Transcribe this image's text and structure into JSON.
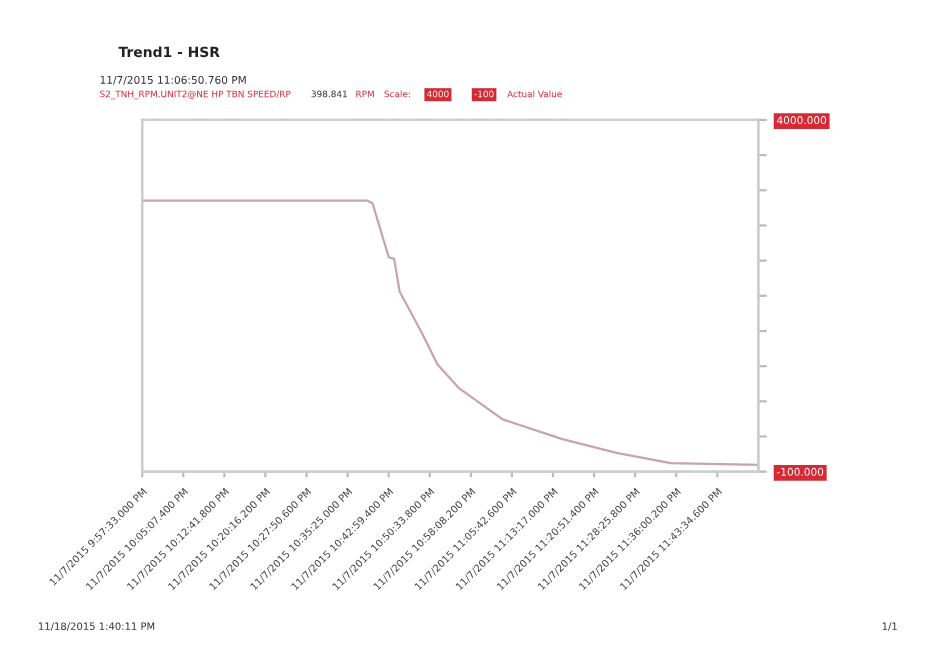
{
  "chart_data": {
    "type": "line",
    "title": "Trend1 - HSR",
    "subtitle": "11/7/2015 11:06:50.760 PM",
    "series": [
      {
        "name": "S2_TNH_RPM.UNIT2@NE HP TBN SPEED/RP",
        "color": "#c9a3ab",
        "axis": "y2",
        "x": [
          "2015-11-07T21:57:33",
          "2015-11-07T22:39",
          "2015-11-07T22:40",
          "2015-11-07T22:43",
          "2015-11-07T22:44",
          "2015-11-07T22:45",
          "2015-11-07T22:49",
          "2015-11-07T22:52",
          "2015-11-07T22:56",
          "2015-11-07T23:04",
          "2015-11-07T23:15",
          "2015-11-07T23:25",
          "2015-11-07T23:35",
          "2015-11-07T23:51"
        ],
        "values": [
          3060,
          3060,
          3030,
          2400,
          2380,
          2000,
          1530,
          1150,
          870,
          510,
          280,
          120,
          0,
          -20
        ]
      }
    ],
    "annotations": [
      "398.841",
      "RPM",
      "Scale:",
      "4000",
      "-100",
      "Actual Value",
      "11/18/2015 1:40:11 PM",
      "1/1"
    ],
    "xlim": [
      "2015-11-07T21:57:33",
      "2015-11-07T23:51:09"
    ],
    "xticks": [
      {
        "value": "2015-11-07T21:57:33",
        "label": "11/7/2015 9:57:33.000 PM"
      },
      {
        "value": "2015-11-07T22:05:07.400",
        "label": "11/7/2015 10:05:07.400 PM"
      },
      {
        "value": "2015-11-07T22:12:41.800",
        "label": "11/7/2015 10:12:41.800 PM"
      },
      {
        "value": "2015-11-07T22:20:16.200",
        "label": "11/7/2015 10:20:16.200 PM"
      },
      {
        "value": "2015-11-07T22:27:50.600",
        "label": "11/7/2015 10:27:50.600 PM"
      },
      {
        "value": "2015-11-07T22:35:25",
        "label": "11/7/2015 10:35:25.000 PM"
      },
      {
        "value": "2015-11-07T22:42:59.400",
        "label": "11/7/2015 10:42:59.400 PM"
      },
      {
        "value": "2015-11-07T22:50:33.800",
        "label": "11/7/2015 10:50:33.800 PM"
      },
      {
        "value": "2015-11-07T22:58:08.200",
        "label": "11/7/2015 10:58:08.200 PM"
      },
      {
        "value": "2015-11-07T23:05:42.600",
        "label": "11/7/2015 11:05:42.600 PM"
      },
      {
        "value": "2015-11-07T23:13:17",
        "label": "11/7/2015 11:13:17.000 PM"
      },
      {
        "value": "2015-11-07T23:20:51.400",
        "label": "11/7/2015 11:20:51.400 PM"
      },
      {
        "value": "2015-11-07T23:28:25.800",
        "label": "11/7/2015 11:28:25.800 PM"
      },
      {
        "value": "2015-11-07T23:36:00.200",
        "label": "11/7/2015 11:36:00.200 PM"
      },
      {
        "value": "2015-11-07T23:43:34.600",
        "label": "11/7/2015 11:43:34.600 PM"
      }
    ],
    "y2lim": [
      -100,
      4000
    ],
    "y2ticks": [
      {
        "value": -100,
        "label": "-100.000"
      },
      {
        "value": 310,
        "label": null
      },
      {
        "value": 720,
        "label": null
      },
      {
        "value": 1130,
        "label": null
      },
      {
        "value": 1540,
        "label": null
      },
      {
        "value": 1950,
        "label": null
      },
      {
        "value": 2360,
        "label": null
      },
      {
        "value": 2770,
        "label": null
      },
      {
        "value": 3180,
        "label": null
      },
      {
        "value": 3590,
        "label": null
      },
      {
        "value": 4000,
        "label": "4000.000"
      }
    ],
    "grid": false,
    "legend": "top left",
    "marker": "none",
    "line_style": "solid"
  }
}
